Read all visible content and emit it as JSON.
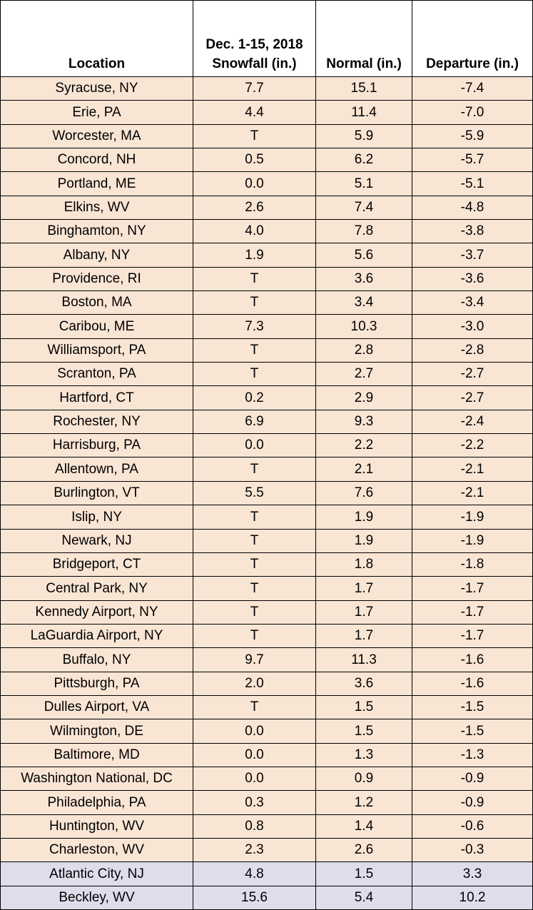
{
  "table": {
    "header": [
      "Location",
      "Dec. 1-15, 2018\nSnowfall (in.)",
      "Normal (in.)",
      "Departure (in.)"
    ],
    "rows": [
      [
        "Syracuse, NY",
        "7.7",
        "15.1",
        "-7.4"
      ],
      [
        "Erie, PA",
        "4.4",
        "11.4",
        "-7.0"
      ],
      [
        "Worcester, MA",
        "T",
        "5.9",
        "-5.9"
      ],
      [
        "Concord, NH",
        "0.5",
        "6.2",
        "-5.7"
      ],
      [
        "Portland, ME",
        "0.0",
        "5.1",
        "-5.1"
      ],
      [
        "Elkins, WV",
        "2.6",
        "7.4",
        "-4.8"
      ],
      [
        "Binghamton, NY",
        "4.0",
        "7.8",
        "-3.8"
      ],
      [
        "Albany, NY",
        "1.9",
        "5.6",
        "-3.7"
      ],
      [
        "Providence, RI",
        "T",
        "3.6",
        "-3.6"
      ],
      [
        "Boston, MA",
        "T",
        "3.4",
        "-3.4"
      ],
      [
        "Caribou, ME",
        "7.3",
        "10.3",
        "-3.0"
      ],
      [
        "Williamsport, PA",
        "T",
        "2.8",
        "-2.8"
      ],
      [
        "Scranton, PA",
        "T",
        "2.7",
        "-2.7"
      ],
      [
        "Hartford, CT",
        "0.2",
        "2.9",
        "-2.7"
      ],
      [
        "Rochester, NY",
        "6.9",
        "9.3",
        "-2.4"
      ],
      [
        "Harrisburg, PA",
        "0.0",
        "2.2",
        "-2.2"
      ],
      [
        "Allentown, PA",
        "T",
        "2.1",
        "-2.1"
      ],
      [
        "Burlington, VT",
        "5.5",
        "7.6",
        "-2.1"
      ],
      [
        "Islip, NY",
        "T",
        "1.9",
        "-1.9"
      ],
      [
        "Newark, NJ",
        "T",
        "1.9",
        "-1.9"
      ],
      [
        "Bridgeport, CT",
        "T",
        "1.8",
        "-1.8"
      ],
      [
        "Central Park, NY",
        "T",
        "1.7",
        "-1.7"
      ],
      [
        "Kennedy Airport, NY",
        "T",
        "1.7",
        "-1.7"
      ],
      [
        "LaGuardia Airport, NY",
        "T",
        "1.7",
        "-1.7"
      ],
      [
        "Buffalo, NY",
        "9.7",
        "11.3",
        "-1.6"
      ],
      [
        "Pittsburgh, PA",
        "2.0",
        "3.6",
        "-1.6"
      ],
      [
        "Dulles Airport, VA",
        "T",
        "1.5",
        "-1.5"
      ],
      [
        "Wilmington, DE",
        "0.0",
        "1.5",
        "-1.5"
      ],
      [
        "Baltimore, MD",
        "0.0",
        "1.3",
        "-1.3"
      ],
      [
        "Washington National, DC",
        "0.0",
        "0.9",
        "-0.9"
      ],
      [
        "Philadelphia, PA",
        "0.3",
        "1.2",
        "-0.9"
      ],
      [
        "Huntington, WV",
        "0.8",
        "1.4",
        "-0.6"
      ],
      [
        "Charleston, WV",
        "2.3",
        "2.6",
        "-0.3"
      ],
      [
        "Atlantic City, NJ",
        "4.8",
        "1.5",
        "3.3"
      ],
      [
        "Beckley, WV",
        "15.6",
        "5.4",
        "10.2"
      ]
    ]
  }
}
